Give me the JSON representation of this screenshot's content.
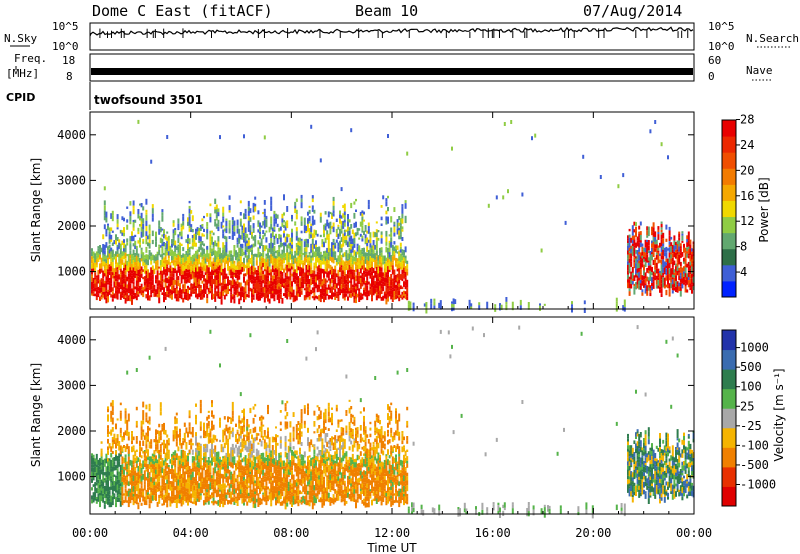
{
  "header": {
    "station": "Dome C East (fitACF)",
    "beam": "Beam 10",
    "date": "07/Aug/2014"
  },
  "status_panels": {
    "nsky_label": "N.Sky",
    "nsky_ticks": [
      "10^5",
      "10^0"
    ],
    "nsearch_label": "N.Search",
    "nsearch_ticks": [
      "10^5",
      "10^0"
    ],
    "freq_label": "Freq.",
    "freq_unit": "[MHz]",
    "freq_ticks": [
      "18",
      "8"
    ],
    "nave_label": "Nave",
    "nave_ticks": [
      "60",
      "0"
    ],
    "cpid_label": "CPID",
    "cpid_value": "twofsound 3501"
  },
  "chart_data": [
    {
      "type": "heatmap",
      "parameter": "Power",
      "ylabel": "Slant Range [km]",
      "xlabel": "Time UT",
      "ylim": [
        180,
        4500
      ],
      "y_ticks": [
        "1000",
        "2000",
        "3000",
        "4000"
      ],
      "x_ticks": [
        "00:00",
        "04:00",
        "08:00",
        "12:00",
        "16:00",
        "20:00",
        "00:00"
      ],
      "colorbar": {
        "label": "Power [dB]",
        "ticks": [
          "4",
          "8",
          "12",
          "16",
          "20",
          "24",
          "28"
        ],
        "colors": [
          "#0022ff",
          "#3f5fd6",
          "#2e6f48",
          "#62a870",
          "#8fcc44",
          "#f0d800",
          "#f5a800",
          "#f37b00",
          "#f04e00",
          "#ec2800",
          "#e80000"
        ]
      },
      "echo_regions": [
        {
          "t_start": "00:00",
          "t_end": "12:40",
          "range_km": [
            400,
            1500
          ],
          "level": "20-28 dB"
        },
        {
          "t_start": "00:30",
          "t_end": "12:30",
          "range_km": [
            1500,
            2700
          ],
          "level": "4-16 dB"
        },
        {
          "t_start": "21:30",
          "t_end": "00:00",
          "range_km": [
            500,
            2200
          ],
          "level": "12-28 dB"
        }
      ]
    },
    {
      "type": "heatmap",
      "parameter": "Velocity",
      "ylabel": "Slant Range [km]",
      "xlabel": "Time UT",
      "ylim": [
        180,
        4500
      ],
      "y_ticks": [
        "1000",
        "2000",
        "3000",
        "4000"
      ],
      "x_ticks": [
        "00:00",
        "04:00",
        "08:00",
        "12:00",
        "16:00",
        "20:00",
        "00:00"
      ],
      "colorbar": {
        "label": "Velocity [m s⁻¹]",
        "ticks": [
          "1000",
          "500",
          "100",
          "25",
          "-25",
          "-100",
          "-500",
          "-1000"
        ],
        "colors": [
          "#2233aa",
          "#3a6cb0",
          "#2e7d4e",
          "#55b34a",
          "#a8a8a8",
          "#f5b400",
          "#f08000",
          "#e83000",
          "#e00000"
        ]
      },
      "echo_regions": [
        {
          "t_start": "00:00",
          "t_end": "12:30",
          "range_km": [
            400,
            1500
          ],
          "level": "-100 to -500 m/s"
        },
        {
          "t_start": "04:00",
          "t_end": "10:30",
          "range_km": [
            1500,
            2000
          ],
          "level": "-25 to 25 m/s"
        },
        {
          "t_start": "21:30",
          "t_end": "00:00",
          "range_km": [
            500,
            2200
          ],
          "level": "100 to -100 m/s"
        }
      ]
    }
  ]
}
